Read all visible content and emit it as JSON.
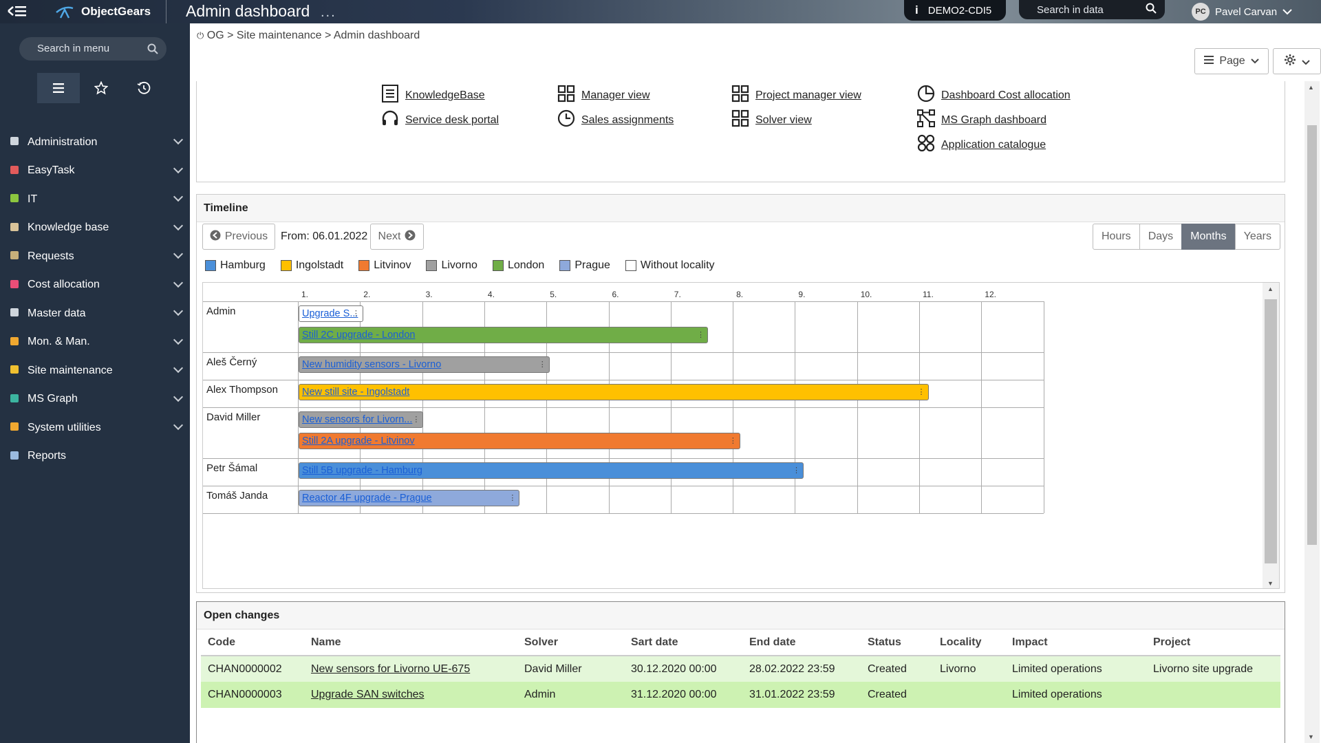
{
  "topbar": {
    "brand": "ObjectGears",
    "title": "Admin dashboard",
    "more": "...",
    "environment": "DEMO2-CDI5",
    "search_placeholder": "Search in data",
    "user_initials": "PC",
    "user_name": "Pavel Carvan"
  },
  "sidebar": {
    "search_placeholder": "Search in menu",
    "items": [
      {
        "label": "Administration",
        "icon": "wrench-icon",
        "color": "#cfd6dd"
      },
      {
        "label": "EasyTask",
        "icon": "eraser-icon",
        "color": "#e25b5b"
      },
      {
        "label": "IT",
        "icon": "cube-icon",
        "color": "#8cc63f"
      },
      {
        "label": "Knowledge base",
        "icon": "book-icon",
        "color": "#d9c49a"
      },
      {
        "label": "Requests",
        "icon": "cart-icon",
        "color": "#c7b07a"
      },
      {
        "label": "Cost allocation",
        "icon": "grid-icon",
        "color": "#e94e77"
      },
      {
        "label": "Master data",
        "icon": "database-icon",
        "color": "#cfd6dd"
      },
      {
        "label": "Mon. & Man.",
        "icon": "magnifier-icon",
        "color": "#f0a830"
      },
      {
        "label": "Site maintenance",
        "icon": "gears-icon",
        "color": "#f0c030"
      },
      {
        "label": "MS Graph",
        "icon": "graph-icon",
        "color": "#3cb5a0"
      },
      {
        "label": "System utilities",
        "icon": "tools-icon",
        "color": "#f0a830"
      },
      {
        "label": "Reports",
        "icon": "report-icon",
        "color": "#9bbbe0"
      }
    ]
  },
  "breadcrumb": "OG > Site maintenance > Admin dashboard",
  "toolbar": {
    "page_label": "Page"
  },
  "links": [
    {
      "label": "KnowledgeBase",
      "icon": "document-icon"
    },
    {
      "label": "Service desk portal",
      "icon": "headset-icon"
    },
    {
      "label": "Manager view",
      "icon": "dashboard-icon"
    },
    {
      "label": "Sales assignments",
      "icon": "clock-icon"
    },
    {
      "label": "Project manager view",
      "icon": "dashboard-icon"
    },
    {
      "label": "Solver view",
      "icon": "dashboard-icon"
    },
    {
      "label": "Dashboard Cost allocation",
      "icon": "pie-icon"
    },
    {
      "label": "MS Graph dashboard",
      "icon": "nodes-icon"
    },
    {
      "label": "Application catalogue",
      "icon": "apps-icon"
    }
  ],
  "timeline": {
    "title": "Timeline",
    "prev_label": "Previous",
    "from_label": "From: 06.01.2022",
    "next_label": "Next",
    "scales": [
      {
        "label": "Hours",
        "active": false
      },
      {
        "label": "Days",
        "active": false
      },
      {
        "label": "Months",
        "active": true
      },
      {
        "label": "Years",
        "active": false
      }
    ],
    "legend": [
      {
        "label": "Hamburg",
        "color": "#4a8fd9"
      },
      {
        "label": "Ingolstadt",
        "color": "#ffc000"
      },
      {
        "label": "Litvinov",
        "color": "#f07a30"
      },
      {
        "label": "Livorno",
        "color": "#a0a0a0"
      },
      {
        "label": "London",
        "color": "#70ad47"
      },
      {
        "label": "Prague",
        "color": "#8ea9db"
      },
      {
        "label": "Without locality",
        "color": "#ffffff"
      }
    ],
    "months": [
      "1.",
      "2.",
      "3.",
      "4.",
      "5.",
      "6.",
      "7.",
      "8.",
      "9.",
      "10.",
      "11.",
      "12."
    ],
    "rows": [
      {
        "name": "Admin",
        "bars": [
          {
            "label": "Upgrade S...",
            "start": 1.0,
            "end": 2.05,
            "color": "#ffffff"
          },
          {
            "label": "Still 2C upgrade - London",
            "start": 1.0,
            "end": 7.6,
            "color": "#70ad47"
          }
        ]
      },
      {
        "name": "Aleš Černý",
        "bars": [
          {
            "label": "New humidity sensors - Livorno",
            "start": 1.0,
            "end": 5.05,
            "color": "#a0a0a0"
          }
        ]
      },
      {
        "name": "Alex Thompson",
        "bars": [
          {
            "label": "New still site - Ingolstadt",
            "start": 1.0,
            "end": 11.15,
            "color": "#ffc000"
          }
        ]
      },
      {
        "name": "David Miller",
        "bars": [
          {
            "label": "New sensors for Livorn...",
            "start": 1.0,
            "end": 3.02,
            "color": "#a0a0a0"
          },
          {
            "label": "Still 2A upgrade - Litvinov",
            "start": 1.0,
            "end": 8.12,
            "color": "#f07a30"
          }
        ]
      },
      {
        "name": "Petr Šámal",
        "bars": [
          {
            "label": "Still 5B upgrade - Hamburg",
            "start": 1.0,
            "end": 9.14,
            "color": "#4a8fd9"
          }
        ]
      },
      {
        "name": "Tomáš Janda",
        "bars": [
          {
            "label": "Reactor 4F upgrade - Prague",
            "start": 1.0,
            "end": 4.57,
            "color": "#8ea9db"
          }
        ]
      }
    ]
  },
  "open_changes": {
    "title": "Open changes",
    "columns": [
      "Code",
      "Name",
      "Solver",
      "Sart date",
      "End date",
      "Status",
      "Locality",
      "Impact",
      "Project"
    ],
    "rows": [
      [
        "CHAN0000002",
        "New sensors for Livorno UE-675",
        "David Miller",
        "30.12.2020 00:00",
        "28.02.2022 23:59",
        "Created",
        "Livorno",
        "Limited operations",
        "Livorno site upgrade"
      ],
      [
        "CHAN0000003",
        "Upgrade SAN switches",
        "Admin",
        "31.12.2020 00:00",
        "31.01.2022 23:59",
        "Created",
        "",
        "Limited operations",
        ""
      ]
    ]
  }
}
